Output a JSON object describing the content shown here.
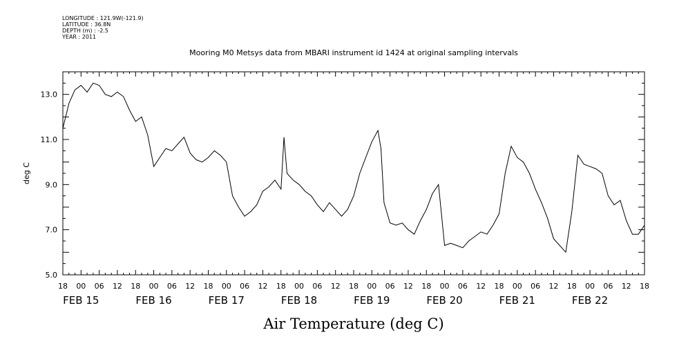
{
  "header": {
    "longitude": "LONGITUDE : 121.9W(-121.9)",
    "latitude": "LATITUDE : 36.8N",
    "depth": "DEPTH (m) : -2.5",
    "year": "YEAR : 2011"
  },
  "chart_data": {
    "type": "line",
    "title": "Mooring M0 Metsys data from MBARI instrument id 1424 at original sampling intervals",
    "xlabel": "Air Temperature (deg C)",
    "ylabel": "deg C",
    "ylim": [
      5.0,
      14.0
    ],
    "yticks": [
      "5.0",
      "7.0",
      "9.0",
      "11.0",
      "13.0"
    ],
    "xlim_hours_from": "2011-02-14T18:00",
    "xlim": [
      "2011-02-14T18:00",
      "2011-02-22T18:00"
    ],
    "hour_tick_labels": [
      "18",
      "00",
      "06",
      "12",
      "18",
      "00",
      "06",
      "12",
      "18",
      "00",
      "06",
      "12",
      "18",
      "00",
      "06",
      "12",
      "18",
      "00",
      "06",
      "12",
      "18",
      "00",
      "06",
      "12",
      "18",
      "00",
      "06",
      "12",
      "18",
      "00",
      "06",
      "12",
      "18"
    ],
    "date_labels": [
      "FEB 15",
      "FEB 16",
      "FEB 17",
      "FEB 18",
      "FEB 19",
      "FEB 20",
      "FEB 21",
      "FEB 22"
    ],
    "grid": false,
    "series": [
      {
        "x": [
          "2011-02-14T18:00",
          "2011-02-14T20:00",
          "2011-02-14T22:00",
          "2011-02-15T00:00",
          "2011-02-15T02:00",
          "2011-02-15T04:00",
          "2011-02-15T06:00",
          "2011-02-15T08:00",
          "2011-02-15T10:00",
          "2011-02-15T12:00",
          "2011-02-15T14:00",
          "2011-02-15T15:00",
          "2011-02-15T16:00",
          "2011-02-15T18:00",
          "2011-02-15T20:00",
          "2011-02-15T22:00",
          "2011-02-16T00:00",
          "2011-02-16T02:00",
          "2011-02-16T04:00",
          "2011-02-16T06:00",
          "2011-02-16T08:00",
          "2011-02-16T10:00",
          "2011-02-16T12:00",
          "2011-02-16T14:00",
          "2011-02-16T16:00",
          "2011-02-16T18:00",
          "2011-02-16T20:00",
          "2011-02-16T22:00",
          "2011-02-17T00:00",
          "2011-02-17T02:00",
          "2011-02-17T04:00",
          "2011-02-17T06:00",
          "2011-02-17T08:00",
          "2011-02-17T10:00",
          "2011-02-17T12:00",
          "2011-02-17T14:00",
          "2011-02-17T16:00",
          "2011-02-17T18:00",
          "2011-02-17T19:00",
          "2011-02-17T20:00",
          "2011-02-17T22:00",
          "2011-02-18T00:00",
          "2011-02-18T02:00",
          "2011-02-18T04:00",
          "2011-02-18T06:00",
          "2011-02-18T08:00",
          "2011-02-18T10:00",
          "2011-02-18T12:00",
          "2011-02-18T14:00",
          "2011-02-18T16:00",
          "2011-02-18T18:00",
          "2011-02-18T20:00",
          "2011-02-18T22:00",
          "2011-02-19T00:00",
          "2011-02-19T02:00",
          "2011-02-19T03:00",
          "2011-02-19T04:00",
          "2011-02-19T06:00",
          "2011-02-19T08:00",
          "2011-02-19T10:00",
          "2011-02-19T12:00",
          "2011-02-19T14:00",
          "2011-02-19T16:00",
          "2011-02-19T18:00",
          "2011-02-19T20:00",
          "2011-02-19T22:00",
          "2011-02-20T00:00",
          "2011-02-20T02:00",
          "2011-02-20T04:00",
          "2011-02-20T06:00",
          "2011-02-20T08:00",
          "2011-02-20T10:00",
          "2011-02-20T12:00",
          "2011-02-20T14:00",
          "2011-02-20T16:00",
          "2011-02-20T18:00",
          "2011-02-20T20:00",
          "2011-02-20T22:00",
          "2011-02-21T00:00",
          "2011-02-21T02:00",
          "2011-02-21T04:00",
          "2011-02-21T06:00",
          "2011-02-21T08:00",
          "2011-02-21T10:00",
          "2011-02-21T12:00",
          "2011-02-21T14:00",
          "2011-02-21T16:00",
          "2011-02-21T18:00",
          "2011-02-21T20:00",
          "2011-02-21T22:00",
          "2011-02-22T00:00",
          "2011-02-22T02:00",
          "2011-02-22T04:00",
          "2011-02-22T06:00",
          "2011-02-22T08:00",
          "2011-02-22T10:00",
          "2011-02-22T12:00",
          "2011-02-22T14:00",
          "2011-02-22T16:00",
          "2011-02-22T18:00"
        ],
        "y": [
          11.5,
          12.6,
          13.2,
          13.4,
          13.1,
          13.5,
          13.4,
          13.0,
          12.9,
          13.1,
          12.9,
          12.6,
          12.3,
          11.8,
          12.0,
          11.2,
          9.8,
          10.2,
          10.6,
          10.5,
          10.8,
          11.1,
          10.4,
          10.1,
          10.0,
          10.2,
          10.5,
          10.3,
          10.0,
          8.5,
          8.0,
          7.6,
          7.8,
          8.1,
          8.7,
          8.9,
          9.2,
          8.8,
          11.1,
          9.5,
          9.2,
          9.0,
          8.7,
          8.5,
          8.1,
          7.8,
          8.2,
          7.9,
          7.6,
          7.9,
          8.5,
          9.5,
          10.2,
          10.9,
          11.4,
          10.6,
          8.2,
          7.3,
          7.2,
          7.3,
          7.0,
          6.8,
          7.4,
          7.9,
          8.6,
          9.0,
          6.3,
          6.4,
          6.3,
          6.2,
          6.5,
          6.7,
          6.9,
          6.8,
          7.2,
          7.7,
          9.5,
          10.7,
          10.2,
          10.0,
          9.5,
          8.8,
          8.2,
          7.5,
          6.6,
          6.3,
          6.0,
          7.8,
          10.3,
          9.9,
          9.8,
          9.7,
          9.5,
          8.5,
          8.1,
          8.3,
          7.4,
          6.8,
          6.8,
          7.2
        ]
      }
    ]
  }
}
